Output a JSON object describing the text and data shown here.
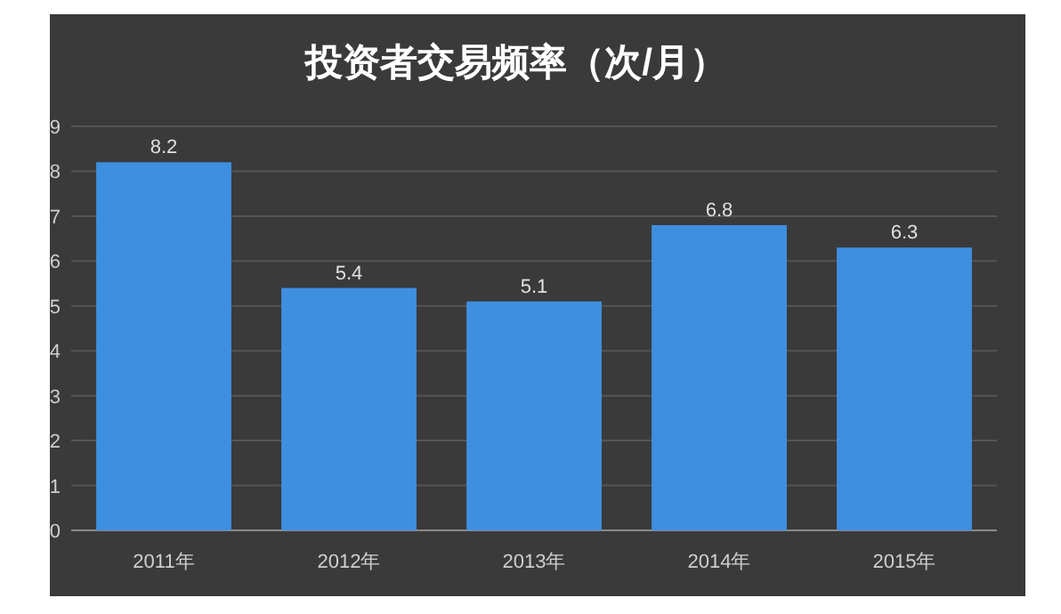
{
  "chart_data": {
    "type": "bar",
    "title": "投资者交易频率（次/月）",
    "categories": [
      "2011年",
      "2012年",
      "2013年",
      "2014年",
      "2015年"
    ],
    "values": [
      8.2,
      5.4,
      5.1,
      6.8,
      6.3
    ],
    "color": "#3f8fe0",
    "ylim": [
      0,
      9
    ],
    "yticks": [
      0,
      1,
      2,
      3,
      4,
      5,
      6,
      7,
      8,
      9
    ],
    "grid": "y",
    "data_labels": true
  }
}
